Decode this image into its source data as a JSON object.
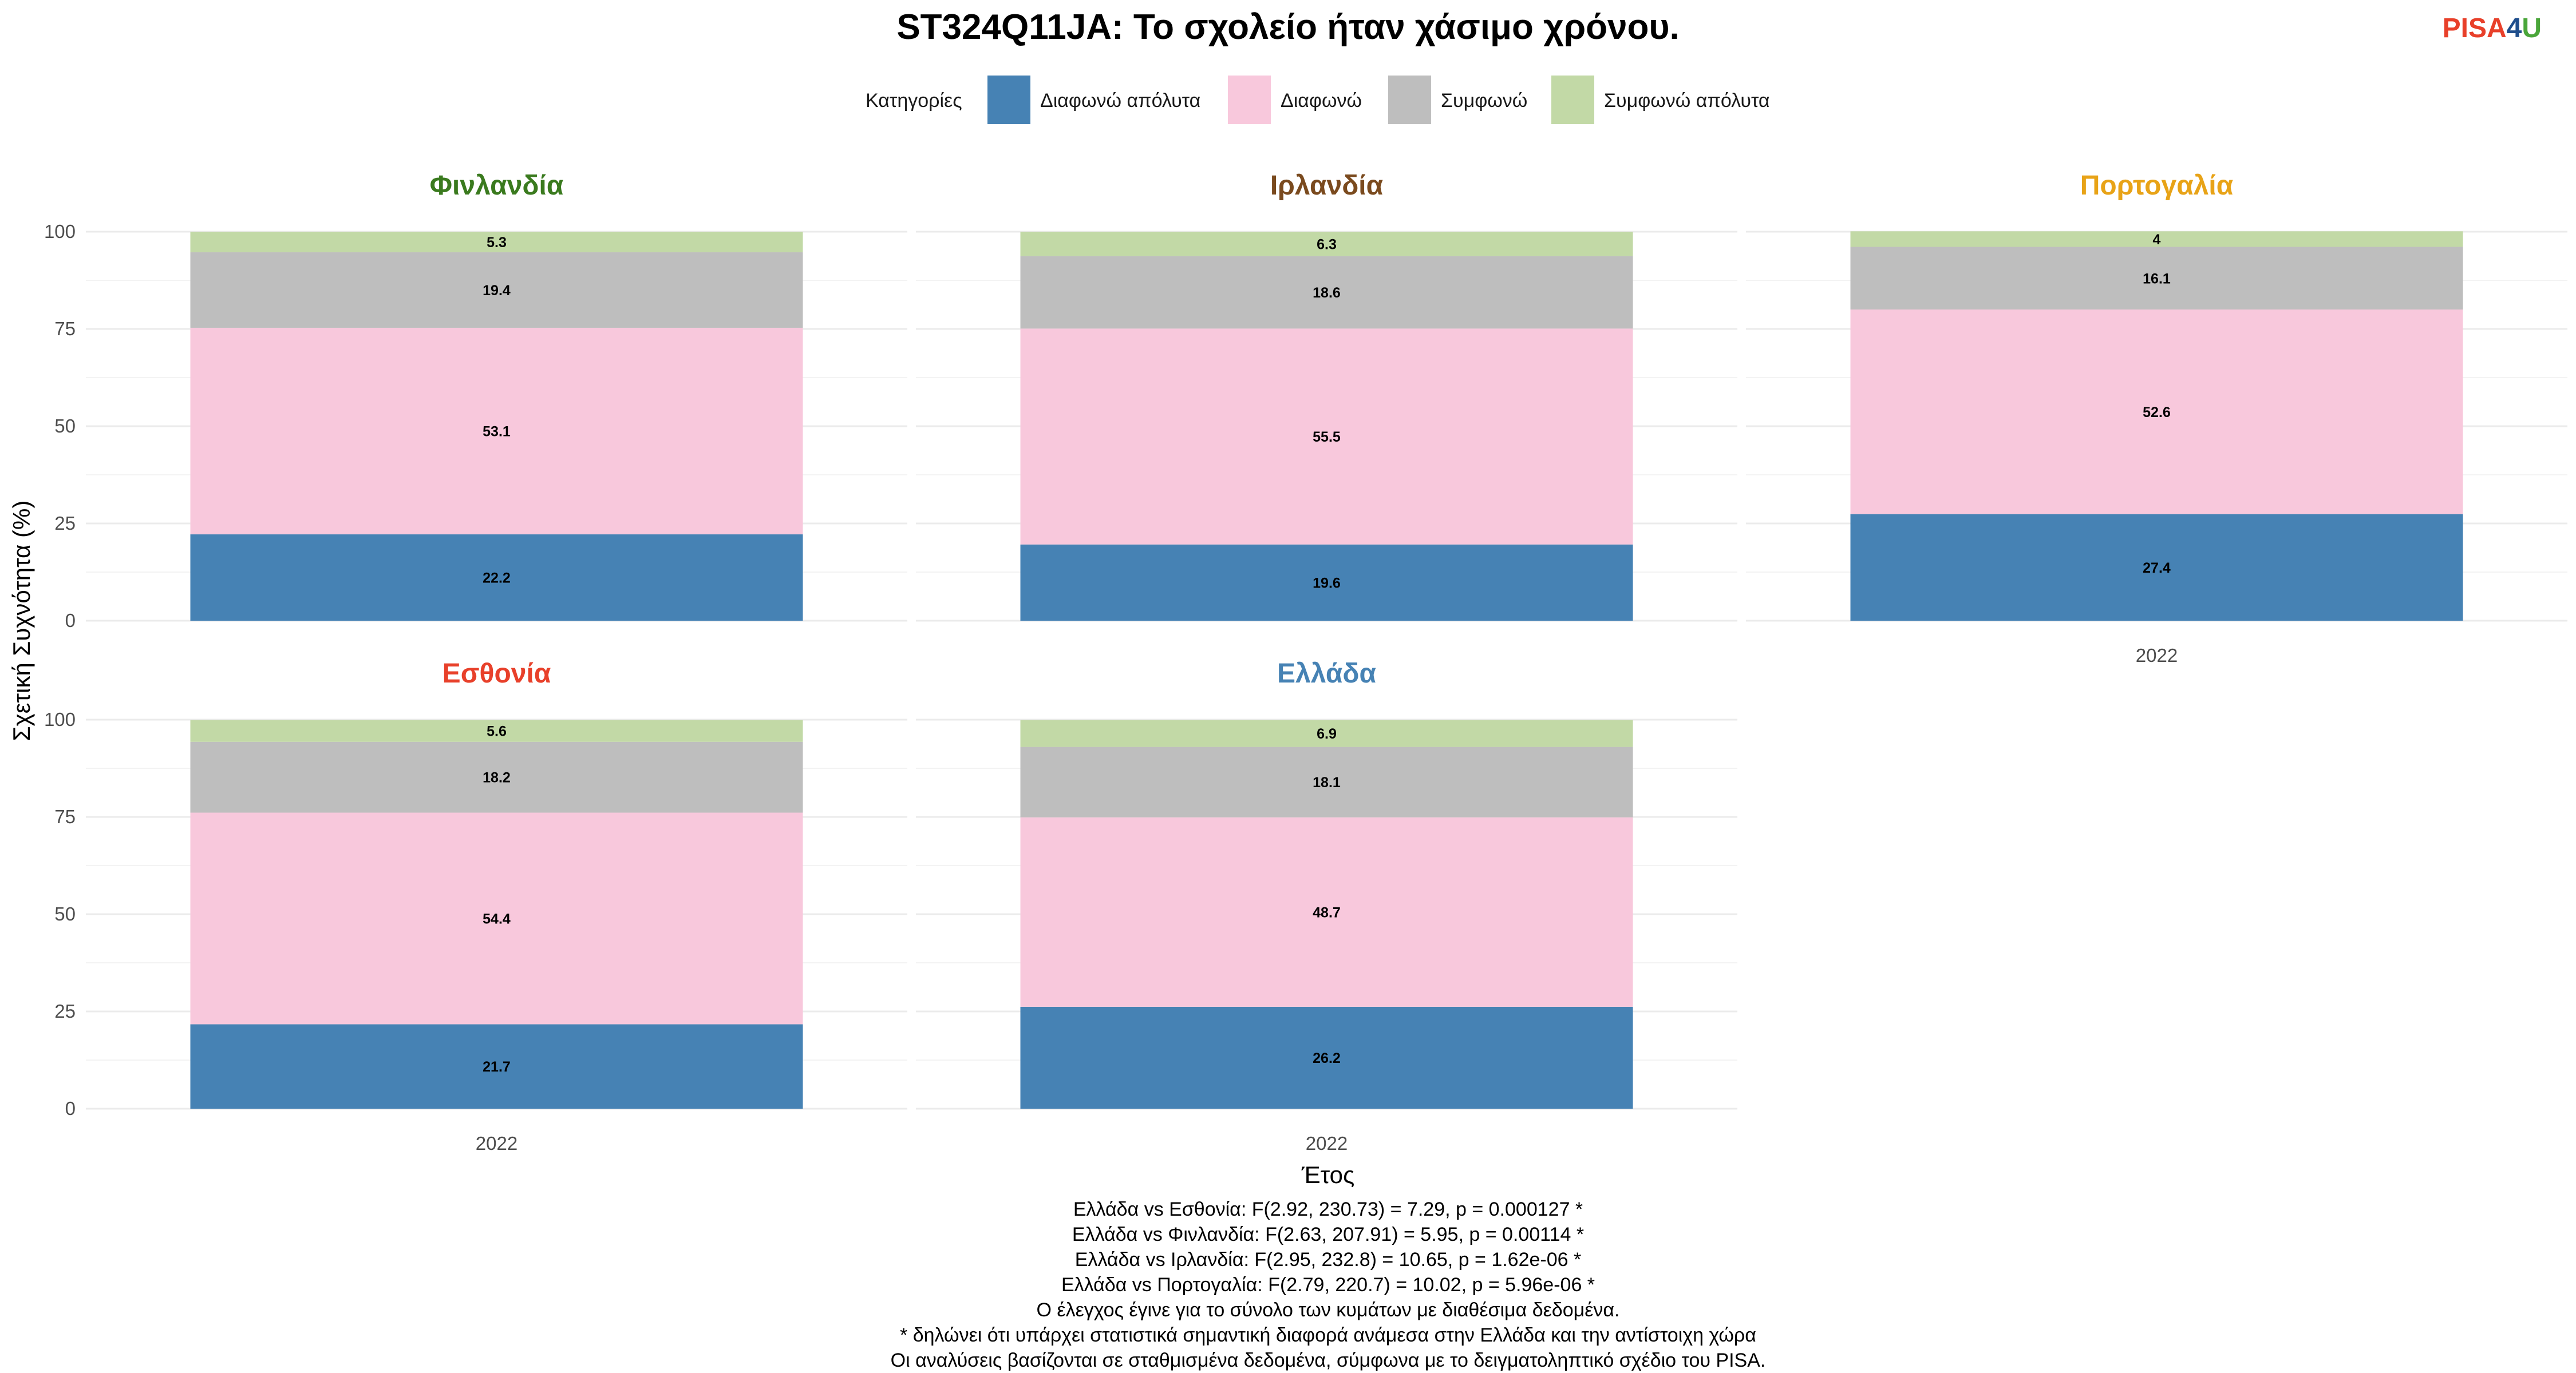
{
  "title": "ST324Q11JA: Το σχολείο ήταν χάσιμο χρόνου.",
  "logo": {
    "part1": "PISA",
    "part2": "4",
    "part3": "U",
    "colors": {
      "part1": "#e8402a",
      "part2": "#1f4e8c",
      "part3": "#4aa63a"
    }
  },
  "legend": {
    "title": "Κατηγορίες",
    "position": "top"
  },
  "chart_data": {
    "type": "bar",
    "stacked": true,
    "xlabel": "Έτος",
    "ylabel": "Σχετική Συχνότητα (%)",
    "ylim": [
      0,
      100
    ],
    "yticks": [
      0,
      25,
      50,
      75,
      100
    ],
    "grid": true,
    "categories": [
      "Διαφωνώ απόλυτα",
      "Διαφωνώ",
      "Συμφωνώ",
      "Συμφωνώ απόλυτα"
    ],
    "category_colors": [
      "#4682b4",
      "#f8c8dc",
      "#bebebe",
      "#c2d9a6"
    ],
    "facets": [
      {
        "name": "Φινλανδία",
        "color": "#3a7a1e",
        "year": "2022",
        "values": [
          22.2,
          53.1,
          19.4,
          5.3
        ],
        "labels": [
          "22.2",
          "53.1",
          "19.4",
          "5.3"
        ]
      },
      {
        "name": "Ιρλανδία",
        "color": "#7a4a1e",
        "year": "2022",
        "values": [
          19.6,
          55.5,
          18.6,
          6.3
        ],
        "labels": [
          "19.6",
          "55.5",
          "18.6",
          "6.3"
        ]
      },
      {
        "name": "Πορτογαλία",
        "color": "#e8a317",
        "year": "2022",
        "values": [
          27.4,
          52.6,
          16.1,
          4.0
        ],
        "labels": [
          "27.4",
          "52.6",
          "16.1",
          "4"
        ]
      },
      {
        "name": "Εσθονία",
        "color": "#e8402a",
        "year": "2022",
        "values": [
          21.7,
          54.4,
          18.2,
          5.6
        ],
        "labels": [
          "21.7",
          "54.4",
          "18.2",
          "5.6"
        ]
      },
      {
        "name": "Ελλάδα",
        "color": "#4682b4",
        "year": "2022",
        "values": [
          26.2,
          48.7,
          18.1,
          6.9
        ],
        "labels": [
          "26.2",
          "48.7",
          "18.1",
          "6.9"
        ]
      }
    ]
  },
  "caption_lines": [
    "Ελλάδα vs Εσθονία: F(2.92, 230.73) = 7.29, p = 0.000127 *",
    "Ελλάδα vs Φινλανδία: F(2.63, 207.91) = 5.95, p = 0.00114 *",
    "Ελλάδα vs Ιρλανδία: F(2.95, 232.8) = 10.65, p = 1.62e-06 *",
    "Ελλάδα vs Πορτογαλία: F(2.79, 220.7) = 10.02, p = 5.96e-06 *",
    "Ο έλεγχος έγινε για το σύνολο των κυμάτων με διαθέσιμα δεδομένα.",
    "* δηλώνει ότι υπάρχει στατιστικά σημαντική διαφορά ανάμεσα στην Ελλάδα και την αντίστοιχη χώρα",
    "Οι αναλύσεις βασίζονται σε σταθμισμένα δεδομένα, σύμφωνα με το δειγματοληπτικό σχέδιο του PISA."
  ]
}
